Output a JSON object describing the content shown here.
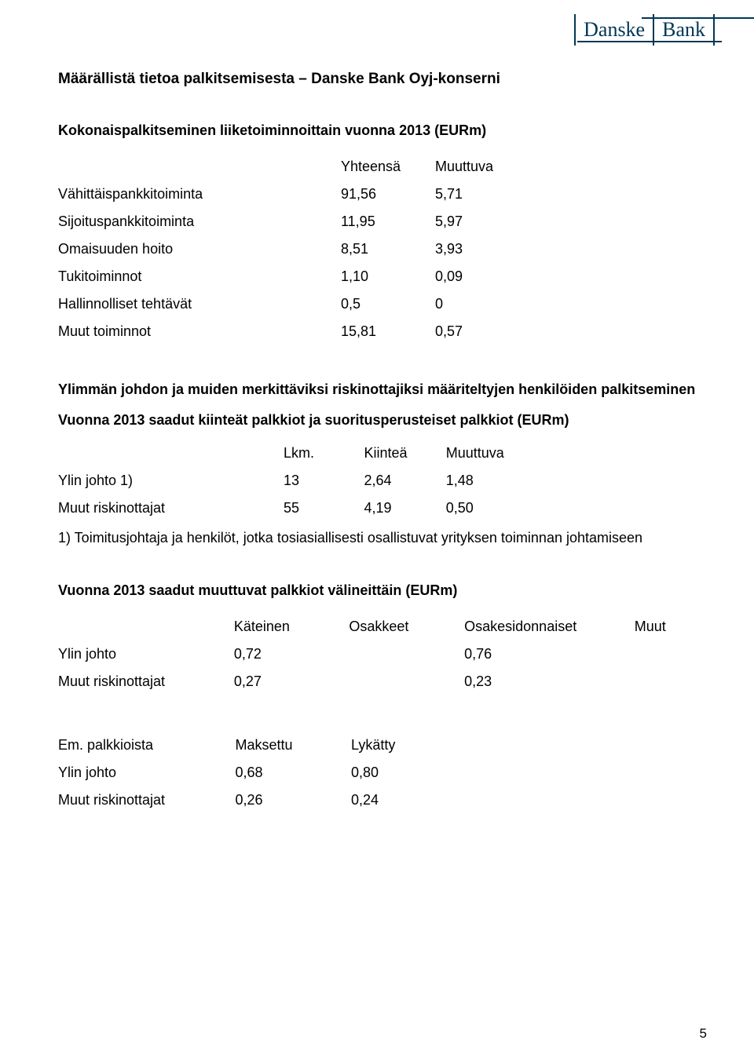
{
  "logo": {
    "part1": "Danske",
    "part2": "Bank"
  },
  "title": "Määrällistä tietoa palkitsemisesta – Danske Bank Oyj-konserni",
  "section1": {
    "heading": "Kokonaispalkitseminen liiketoiminnoittain vuonna 2013 (EURm)",
    "cols": [
      "Yhteensä",
      "Muuttuva"
    ],
    "rows": [
      {
        "label": "Vähittäispankkitoiminta",
        "v1": "91,56",
        "v2": "5,71"
      },
      {
        "label": "Sijoituspankkitoiminta",
        "v1": "11,95",
        "v2": "5,97"
      },
      {
        "label": "Omaisuuden hoito",
        "v1": "8,51",
        "v2": "3,93"
      },
      {
        "label": "Tukitoiminnot",
        "v1": "1,10",
        "v2": "0,09"
      },
      {
        "label": "Hallinnolliset tehtävät",
        "v1": " 0,5",
        "v2": "0"
      },
      {
        "label": "Muut toiminnot",
        "v1": "15,81",
        "v2": "0,57"
      }
    ]
  },
  "section2": {
    "heading": "Ylimmän johdon ja muiden merkittäviksi riskinottajiksi määriteltyjen henkilöiden palkitseminen",
    "subheading": "Vuonna 2013 saadut kiinteät palkkiot ja suoritusperusteiset palkkiot (EURm)",
    "cols": [
      "Lkm.",
      "Kiinteä",
      "Muuttuva"
    ],
    "rows": [
      {
        "label": "Ylin johto 1)",
        "v1": "13",
        "v2": "2,64",
        "v3": "1,48"
      },
      {
        "label": "Muut riskinottajat",
        "v1": "55",
        "v2": "4,19",
        "v3": "0,50"
      }
    ],
    "note": "1) Toimitusjohtaja ja henkilöt, jotka tosiasiallisesti osallistuvat yrityksen toiminnan johtamiseen"
  },
  "section3": {
    "heading": "Vuonna 2013 saadut muuttuvat palkkiot välineittäin (EURm)",
    "cols": [
      "Käteinen",
      "Osakkeet",
      "Osakesidonnaiset",
      "Muut"
    ],
    "rows": [
      {
        "label": "Ylin johto",
        "v1": "0,72",
        "v2": "",
        "v3": "0,76",
        "v4": ""
      },
      {
        "label": "Muut riskinottajat",
        "v1": "0,27",
        "v2": "",
        "v3": "0,23",
        "v4": ""
      }
    ]
  },
  "section4": {
    "label": "Em. palkkioista",
    "cols": [
      "Maksettu",
      "Lykätty"
    ],
    "rows": [
      {
        "label": "Ylin johto",
        "v1": "0,68",
        "v2": "0,80"
      },
      {
        "label": "Muut riskinottajat",
        "v1": "0,26",
        "v2": "0,24"
      }
    ]
  },
  "page_number": "5"
}
